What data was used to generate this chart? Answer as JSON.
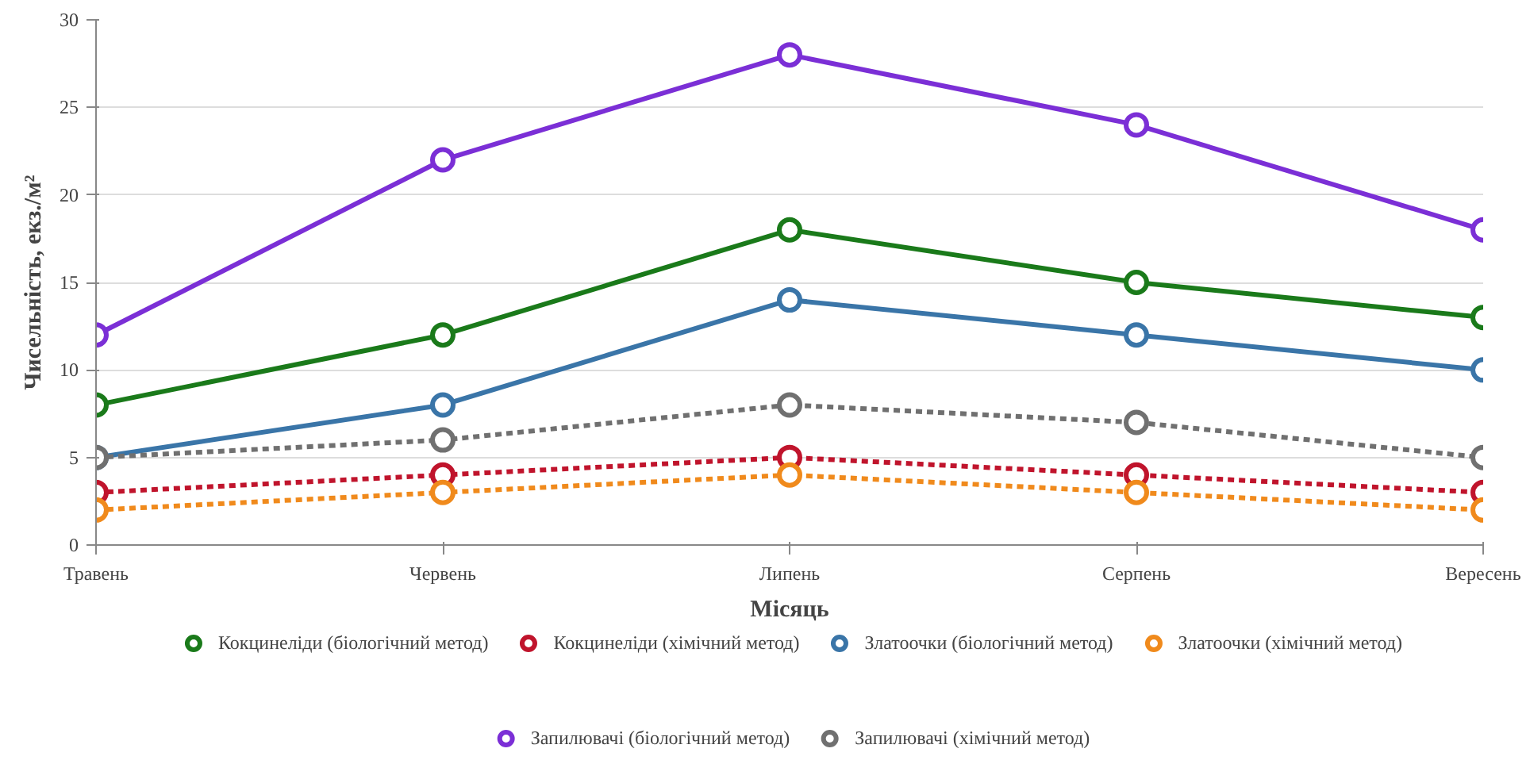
{
  "chart_data": {
    "type": "line",
    "xlabel": "Місяць",
    "ylabel": "Чисельність, екз./м²",
    "categories": [
      "Травень",
      "Червень",
      "Липень",
      "Серпень",
      "Вересень"
    ],
    "ylim": [
      0,
      30
    ],
    "yticks": [
      0,
      5,
      10,
      15,
      20,
      25,
      30
    ],
    "grid": "y",
    "legend": "bottom",
    "marker": "circle",
    "series": [
      {
        "name": "Кокцинеліди (біологічний метод)",
        "color": "#1a7a1a",
        "line_style": "solid",
        "values": [
          8,
          12,
          18,
          15,
          13
        ]
      },
      {
        "name": "Кокцинеліди (хімічний метод)",
        "color": "#c0142c",
        "line_style": "dashed",
        "values": [
          3,
          4,
          5,
          4,
          3
        ]
      },
      {
        "name": "Златоочки (біологічний метод)",
        "color": "#3a75a8",
        "line_style": "solid",
        "values": [
          5,
          8,
          14,
          12,
          10
        ]
      },
      {
        "name": "Златоочки (хімічний метод)",
        "color": "#f08a1c",
        "line_style": "dashed",
        "values": [
          2,
          3,
          4,
          3,
          2
        ]
      },
      {
        "name": "Запилювачі (біологічний метод)",
        "color": "#7b2fd6",
        "line_style": "solid",
        "values": [
          12,
          22,
          28,
          24,
          18
        ]
      },
      {
        "name": "Запилювачі (хімічний метод)",
        "color": "#707070",
        "line_style": "dashed",
        "values": [
          5,
          6,
          8,
          7,
          5
        ]
      }
    ]
  }
}
